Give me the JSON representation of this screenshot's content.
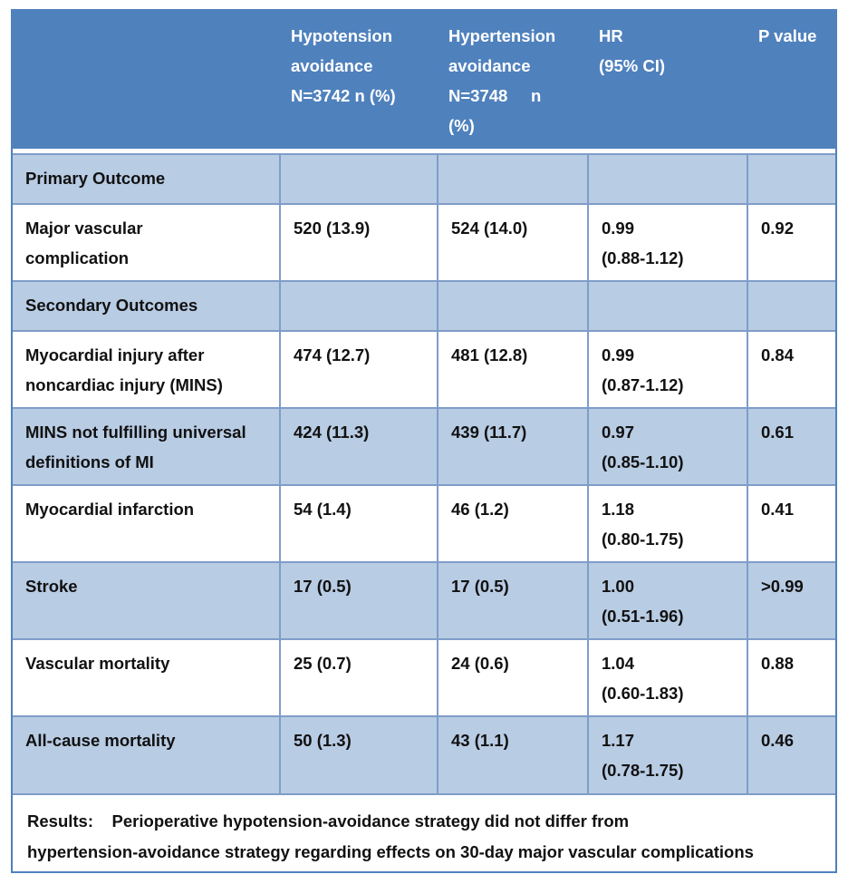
{
  "header": {
    "col1": "Hypotension\navoidance\nN=3742 n (%)",
    "col2": "Hypertension\navoidance\nN=3748     n\n(%)",
    "col3": "HR\n(95% CI)",
    "col4": "P value"
  },
  "sections": {
    "primary": "Primary Outcome",
    "secondary": "Secondary Outcomes"
  },
  "rows": [
    {
      "label": "Major vascular\ncomplication",
      "hypo": "520 (13.9)",
      "hyper": "524 (14.0)",
      "hr": "0.99\n(0.88-1.12)",
      "p": "0.92"
    },
    {
      "label": "Myocardial injury after\nnoncardiac injury (MINS)",
      "hypo": "474 (12.7)",
      "hyper": "481 (12.8)",
      "hr": "0.99\n(0.87-1.12)",
      "p": "0.84"
    },
    {
      "label": "MINS not fulfilling universal\ndefinitions of MI",
      "hypo": "424 (11.3)",
      "hyper": "439 (11.7)",
      "hr": "0.97\n(0.85-1.10)",
      "p": "0.61"
    },
    {
      "label": "Myocardial infarction",
      "hypo": "54 (1.4)",
      "hyper": "46 (1.2)",
      "hr": "1.18\n(0.80-1.75)",
      "p": "0.41"
    },
    {
      "label": "Stroke",
      "hypo": "17 (0.5)",
      "hyper": "17 (0.5)",
      "hr": "1.00\n(0.51-1.96)",
      "p": ">0.99"
    },
    {
      "label": "Vascular mortality",
      "hypo": "25 (0.7)",
      "hyper": "24 (0.6)",
      "hr": "1.04\n(0.60-1.83)",
      "p": "0.88"
    },
    {
      "label": "All-cause mortality",
      "hypo": "50 (1.3)",
      "hyper": "43 (1.1)",
      "hr": "1.17\n(0.78-1.75)",
      "p": "0.46"
    }
  ],
  "results": "Results:    Perioperative hypotension-avoidance strategy did not differ from\nhypertension-avoidance strategy regarding effects on 30-day major vascular complications"
}
